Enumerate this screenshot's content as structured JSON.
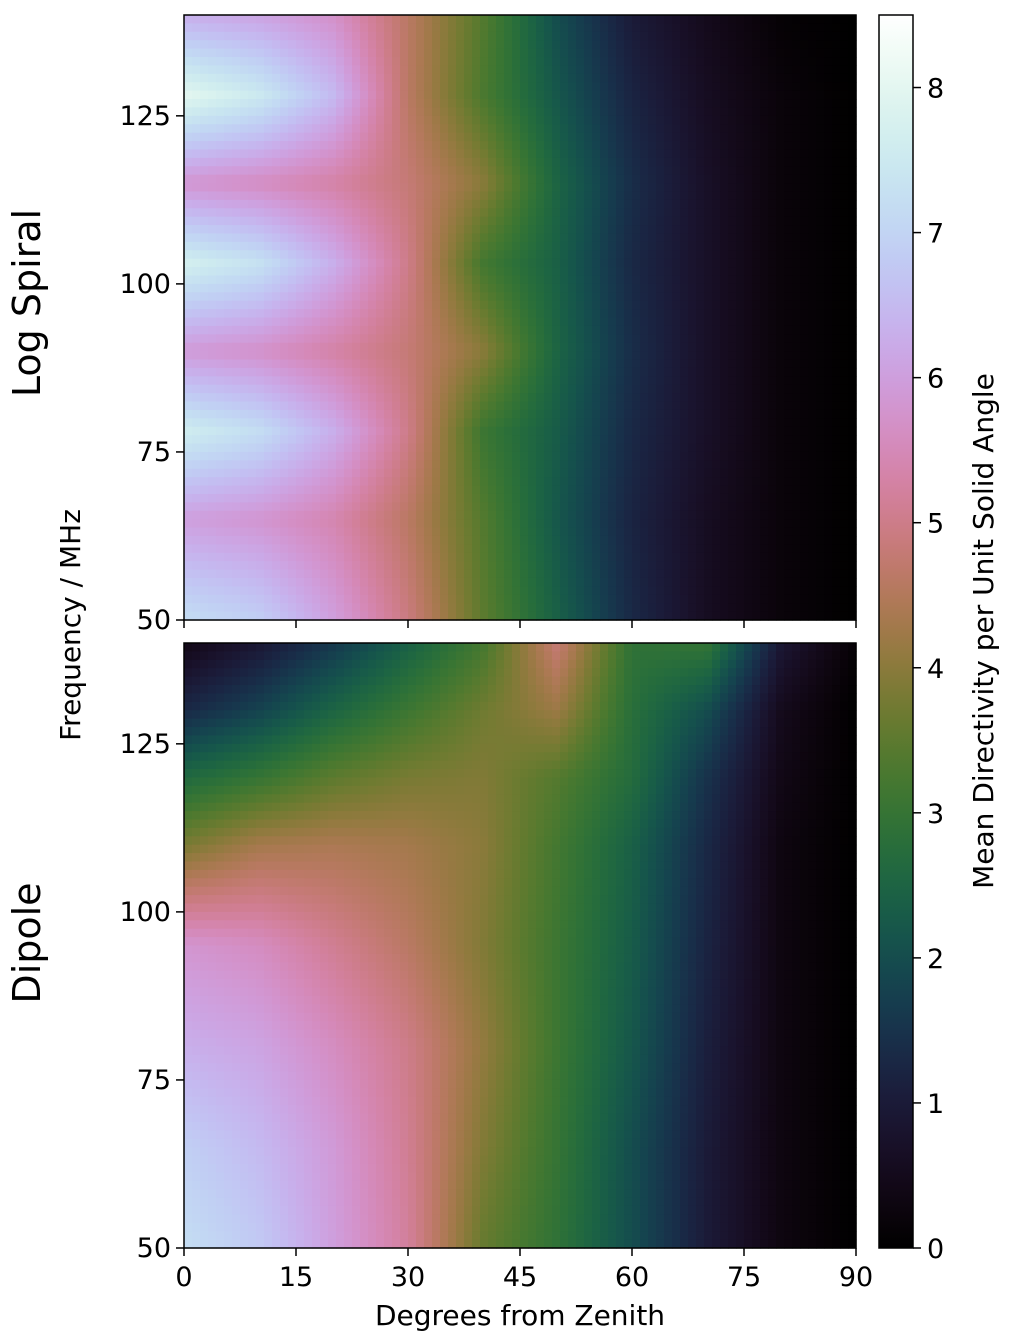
{
  "chart_data": {
    "type": "heatmap",
    "colormap": "cubehelix",
    "xlabel": "Degrees from Zenith",
    "ylabel": "Frequency / MHz",
    "xlim": [
      0,
      90
    ],
    "ylim": [
      50,
      140
    ],
    "xticks": [
      "0",
      "15",
      "30",
      "45",
      "60",
      "75",
      "90"
    ],
    "yticks": [
      "50",
      "75",
      "100",
      "125"
    ],
    "colorbar": {
      "label": "Mean Directivity per Unit Solid Angle",
      "range": [
        0,
        8.5
      ],
      "ticks": [
        "0",
        "1",
        "2",
        "3",
        "4",
        "5",
        "6",
        "7",
        "8"
      ]
    },
    "panels": [
      {
        "row_label": "Log Spiral",
        "description_values": {
          "peak_value_near_zenith": 8.0,
          "peak_frequencies_mhz": [
            52,
            78,
            103,
            128
          ],
          "edge_of_beam_degrees_at_value_1": [
            66,
            70,
            70,
            67
          ]
        },
        "sample_grid": {
          "x_degrees": [
            0,
            10,
            20,
            30,
            40,
            50,
            60,
            70,
            80,
            90
          ],
          "rows": [
            {
              "freq": 50,
              "values": [
                7.2,
                6.9,
                6.0,
                4.9,
                3.5,
                2.4,
                1.3,
                0.6,
                0.2,
                0.0
              ]
            },
            {
              "freq": 65,
              "values": [
                6.0,
                5.8,
                5.4,
                4.6,
                3.4,
                2.2,
                1.2,
                0.6,
                0.2,
                0.0
              ]
            },
            {
              "freq": 78,
              "values": [
                7.6,
                7.2,
                6.3,
                5.0,
                3.1,
                2.3,
                1.3,
                0.7,
                0.2,
                0.0
              ]
            },
            {
              "freq": 90,
              "values": [
                5.9,
                5.7,
                5.3,
                4.8,
                4.0,
                2.5,
                1.4,
                0.7,
                0.2,
                0.0
              ]
            },
            {
              "freq": 103,
              "values": [
                7.7,
                7.3,
                6.3,
                5.0,
                3.2,
                2.4,
                1.3,
                0.7,
                0.2,
                0.0
              ]
            },
            {
              "freq": 115,
              "values": [
                5.8,
                5.6,
                5.3,
                4.8,
                4.0,
                2.5,
                1.4,
                0.7,
                0.2,
                0.0
              ]
            },
            {
              "freq": 128,
              "values": [
                8.0,
                7.5,
                6.5,
                4.6,
                3.3,
                2.2,
                1.2,
                0.6,
                0.2,
                0.0
              ]
            },
            {
              "freq": 140,
              "values": [
                6.3,
                6.1,
                5.7,
                4.6,
                3.4,
                2.0,
                1.0,
                0.5,
                0.1,
                0.0
              ]
            }
          ]
        }
      },
      {
        "row_label": "Dipole",
        "description_values": {
          "peak_value_near_zenith": 7.3,
          "zenith_null_at_top_frequency": 0.4
        },
        "sample_grid": {
          "x_degrees": [
            0,
            10,
            20,
            30,
            40,
            50,
            60,
            70,
            80,
            90
          ],
          "rows": [
            {
              "freq": 50,
              "values": [
                7.2,
                6.8,
                6.0,
                5.2,
                3.6,
                2.9,
                2.0,
                1.0,
                0.3,
                0.0
              ]
            },
            {
              "freq": 65,
              "values": [
                6.9,
                6.5,
                5.9,
                5.1,
                3.9,
                3.0,
                2.0,
                1.0,
                0.3,
                0.0
              ]
            },
            {
              "freq": 80,
              "values": [
                6.3,
                6.1,
                5.6,
                5.0,
                4.1,
                3.1,
                2.2,
                1.1,
                0.3,
                0.0
              ]
            },
            {
              "freq": 95,
              "values": [
                5.8,
                5.6,
                5.1,
                4.6,
                3.9,
                3.1,
                2.3,
                1.2,
                0.3,
                0.0
              ]
            },
            {
              "freq": 110,
              "values": [
                3.8,
                4.3,
                4.4,
                4.3,
                4.0,
                3.2,
                2.4,
                1.3,
                0.3,
                0.0
              ]
            },
            {
              "freq": 120,
              "values": [
                2.6,
                3.0,
                3.5,
                3.8,
                3.9,
                3.4,
                2.7,
                1.5,
                0.4,
                0.0
              ]
            },
            {
              "freq": 130,
              "values": [
                1.3,
                1.8,
                2.5,
                3.1,
                3.7,
                4.2,
                2.8,
                2.0,
                0.5,
                0.0
              ]
            },
            {
              "freq": 140,
              "values": [
                0.4,
                0.9,
                1.6,
                2.4,
                3.2,
                4.8,
                2.9,
                3.0,
                0.9,
                0.1
              ]
            }
          ]
        }
      }
    ]
  }
}
